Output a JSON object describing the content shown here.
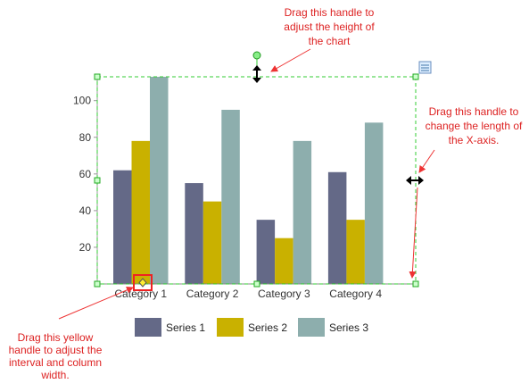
{
  "chart_data": {
    "type": "bar",
    "categories": [
      "Category 1",
      "Category 2",
      "Category 3",
      "Category 4"
    ],
    "series": [
      {
        "name": "Series 1",
        "values": [
          62,
          55,
          35,
          61
        ]
      },
      {
        "name": "Series 2",
        "values": [
          78,
          45,
          25,
          35
        ]
      },
      {
        "name": "Series 3",
        "values": [
          113,
          95,
          78,
          88
        ]
      }
    ],
    "yticks": [
      20,
      40,
      60,
      80,
      100
    ],
    "ylim": [
      0,
      113
    ],
    "legend": "bottom",
    "grid": false
  },
  "colors": {
    "series": [
      "#646987",
      "#c9b100",
      "#8daead"
    ],
    "selection": "#33cc33",
    "annotation": "#ee3333"
  },
  "annotations": {
    "height_handle": "Drag this handle to adjust the height of the chart",
    "xaxis_handle": "Drag this handle to change the length of the X-axis.",
    "interval_handle": "Drag this yellow handle to adjust the interval and column width."
  },
  "icons": {
    "chart_options": "chart-options-icon",
    "height_handle": "vertical-resize-cursor-icon",
    "length_handle": "horizontal-resize-cursor-icon",
    "rotate_handle": "rotate-handle-icon",
    "interval_handle": "yellow-diamond-handle-icon"
  }
}
